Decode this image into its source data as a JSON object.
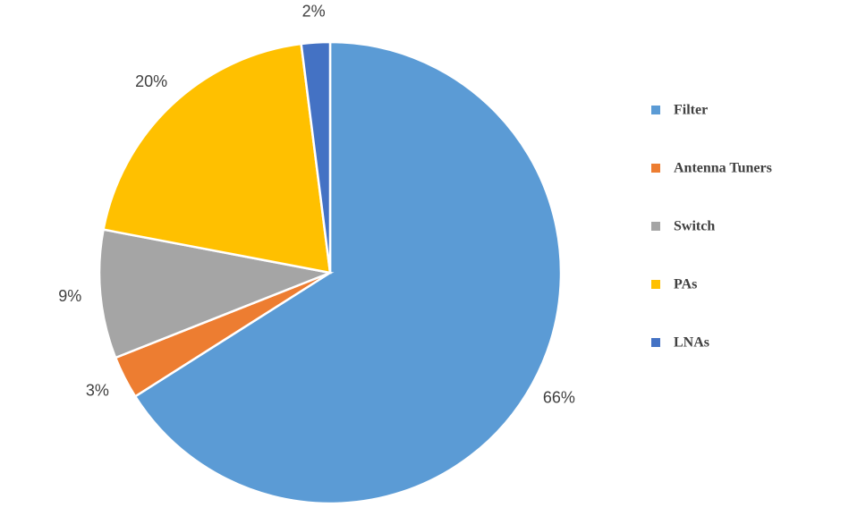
{
  "chart_data": {
    "type": "pie",
    "categories": [
      "Filter",
      "Antenna Tuners",
      "Switch",
      "PAs",
      "LNAs"
    ],
    "values": [
      66,
      3,
      9,
      20,
      2
    ],
    "value_labels": [
      "66%",
      "3%",
      "9%",
      "20%",
      "2%"
    ],
    "colors": [
      "#5b9bd5",
      "#ed7d31",
      "#a5a5a5",
      "#ffc000",
      "#4472c4"
    ],
    "legend": "right"
  }
}
